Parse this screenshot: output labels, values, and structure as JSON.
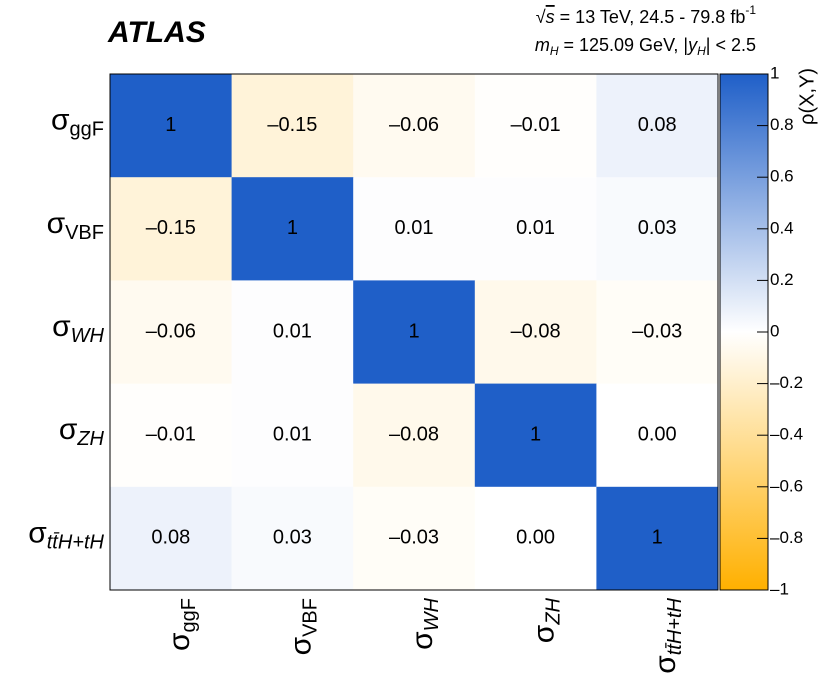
{
  "chart_data": {
    "type": "heatmap",
    "title": "ATLAS",
    "annotations": [
      [
        {
          "text": "√",
          "style": "normal"
        },
        {
          "text": "s",
          "style": "over"
        },
        {
          "text": " = 13 TeV, 24.5 - 79.8 fb",
          "style": "normal"
        },
        {
          "text": "-1",
          "style": "sup"
        }
      ],
      [
        {
          "text": "m",
          "style": "italic"
        },
        {
          "text": "H",
          "style": "sub-italic"
        },
        {
          "text": " = 125.09 GeV, |",
          "style": "normal"
        },
        {
          "text": "y",
          "style": "italic"
        },
        {
          "text": "H",
          "style": "sub-italic"
        },
        {
          "text": "| < 2.5",
          "style": "normal"
        }
      ]
    ],
    "x_labels": [
      {
        "base": "σ",
        "sub": "ggF",
        "italic": false
      },
      {
        "base": "σ",
        "sub": "VBF",
        "italic": false
      },
      {
        "base": "σ",
        "sub": "WH",
        "italic": true
      },
      {
        "base": "σ",
        "sub": "ZH",
        "italic": true
      },
      {
        "base": "σ",
        "sub": "tt̄H+tH",
        "italic": true
      }
    ],
    "y_labels": [
      {
        "base": "σ",
        "sub": "ggF",
        "italic": false
      },
      {
        "base": "σ",
        "sub": "VBF",
        "italic": false
      },
      {
        "base": "σ",
        "sub": "WH",
        "italic": true
      },
      {
        "base": "σ",
        "sub": "ZH",
        "italic": true
      },
      {
        "base": "σ",
        "sub": "tt̄H+tH",
        "italic": true
      }
    ],
    "values": [
      [
        1,
        -0.15,
        -0.06,
        -0.01,
        0.08
      ],
      [
        -0.15,
        1,
        0.01,
        0.01,
        0.03
      ],
      [
        -0.06,
        0.01,
        1,
        -0.08,
        -0.03
      ],
      [
        -0.01,
        0.01,
        -0.08,
        1,
        0
      ],
      [
        0.08,
        0.03,
        -0.03,
        0,
        1
      ]
    ],
    "value_labels": [
      [
        "1",
        "–0.15",
        "–0.06",
        "–0.01",
        "0.08"
      ],
      [
        "–0.15",
        "1",
        "0.01",
        "0.01",
        "0.03"
      ],
      [
        "–0.06",
        "0.01",
        "1",
        "–0.08",
        "–0.03"
      ],
      [
        "–0.01",
        "0.01",
        "–0.08",
        "1",
        "0.00"
      ],
      [
        "0.08",
        "0.03",
        "–0.03",
        "0.00",
        "1"
      ]
    ],
    "colorbar_label": "ρ(X,Y)",
    "zlim": [
      -1,
      1
    ],
    "zticks": [
      {
        "value": -1,
        "label": "–1"
      },
      {
        "value": -0.8,
        "label": "–0.8"
      },
      {
        "value": -0.6,
        "label": "–0.6"
      },
      {
        "value": -0.4,
        "label": "–0.4"
      },
      {
        "value": -0.2,
        "label": "–0.2"
      },
      0,
      0.2,
      0.4,
      0.6,
      0.8,
      1
    ],
    "colors": {
      "low": "#ffb000",
      "mid": "#ffffff",
      "high": "#1f5fc8"
    }
  }
}
